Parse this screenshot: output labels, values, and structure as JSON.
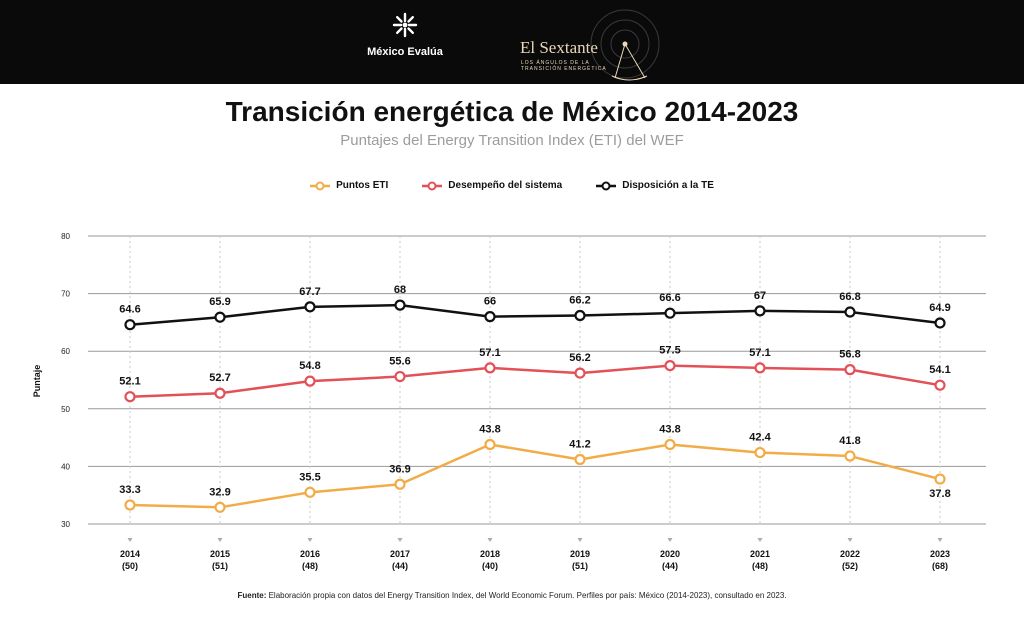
{
  "header": {
    "brand_left": "México Evalúa",
    "brand_right": "El Sextante",
    "brand_right_tagline_1": "LOS ÁNGULOS DE LA",
    "brand_right_tagline_2": "TRANSICIÓN ENERGÉTICA"
  },
  "colors": {
    "background_bar": "#0a0a0a",
    "puntos_eti": "#f2ac47",
    "desempeno": "#e35057",
    "disposicion": "#111111",
    "grid": "#9a9a9a"
  },
  "chart_data": {
    "type": "line",
    "title": "Transición energética de México 2014-2023",
    "subtitle": "Puntajes del Energy Transition Index (ETI) del WEF",
    "ylabel": "Puntaje",
    "xlabel": "",
    "ylim": [
      30,
      80
    ],
    "yticks": [
      30,
      40,
      50,
      60,
      70,
      80
    ],
    "grid": true,
    "legend_position": "top-center",
    "categories": [
      "2014",
      "2015",
      "2016",
      "2017",
      "2018",
      "2019",
      "2020",
      "2021",
      "2022",
      "2023"
    ],
    "category_sublabels": [
      "(50)",
      "(51)",
      "(48)",
      "(44)",
      "(40)",
      "(51)",
      "(44)",
      "(48)",
      "(52)",
      "(68)"
    ],
    "series": [
      {
        "name": "Puntos ETI",
        "color": "#f2ac47",
        "values": [
          33.3,
          32.9,
          35.5,
          36.9,
          43.8,
          41.2,
          43.8,
          42.4,
          41.8,
          37.8
        ],
        "labels": [
          "33.3",
          "32.9",
          "35.5",
          "36.9",
          "43.8",
          "41.2",
          "43.8",
          "42.4",
          "41.8",
          "37.8"
        ]
      },
      {
        "name": "Desempeño del sistema",
        "color": "#e35057",
        "values": [
          52.1,
          52.7,
          54.8,
          55.6,
          57.1,
          56.2,
          57.5,
          57.1,
          56.8,
          54.1
        ],
        "labels": [
          "52.1",
          "52.7",
          "54.8",
          "55.6",
          "57.1",
          "56.2",
          "57.5",
          "57.1",
          "56.8",
          "54.1"
        ]
      },
      {
        "name": "Disposición a la TE",
        "color": "#111111",
        "values": [
          64.6,
          65.9,
          67.7,
          68,
          66,
          66.2,
          66.6,
          67,
          66.8,
          64.9
        ],
        "labels": [
          "64.6",
          "65.9",
          "67.7",
          "68",
          "66",
          "66.2",
          "66.6",
          "67",
          "66.8",
          "64.9"
        ]
      }
    ]
  },
  "source": {
    "label": "Fuente:",
    "text": " Elaboración propia con datos del Energy Transition Index, del World Economic Forum. Perfiles por país: México (2014-2023), consultado en 2023."
  }
}
